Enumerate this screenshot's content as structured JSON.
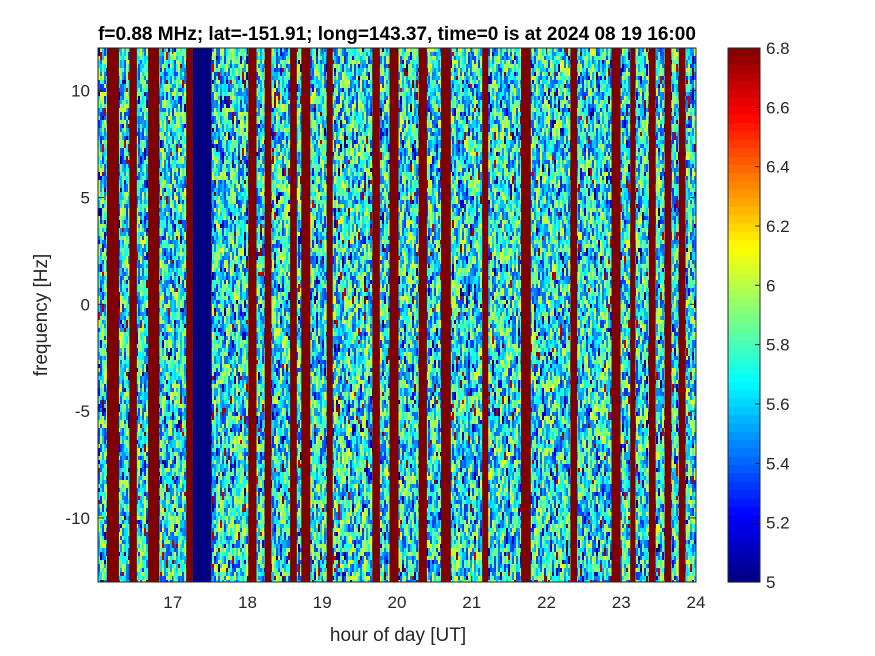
{
  "chart_data": {
    "type": "heatmap",
    "title": "f=0.88 MHz;  lat=-151.91; long=143.37, time=0 is at 2024 08 19 16:00",
    "xlabel": "hour of day [UT]",
    "ylabel": "frequency [Hz]",
    "xlim": [
      16.0,
      24.0
    ],
    "ylim": [
      -13.0,
      12.0
    ],
    "x_ticks": [
      17,
      18,
      19,
      20,
      21,
      22,
      23,
      24
    ],
    "x_tick_labels": [
      "17",
      "18",
      "19",
      "20",
      "21",
      "22",
      "23",
      "24"
    ],
    "y_ticks": [
      -10,
      -5,
      0,
      5,
      10
    ],
    "y_tick_labels": [
      "-10",
      "-5",
      "0",
      "5",
      "10"
    ],
    "colorbar": {
      "colormap": "jet",
      "clim": [
        5.0,
        6.8
      ],
      "ticks": [
        5,
        5.2,
        5.4,
        5.6,
        5.8,
        6,
        6.2,
        6.4,
        6.6,
        6.8
      ],
      "tick_labels": [
        "5",
        "5.2",
        "5.4",
        "5.6",
        "5.8",
        "6",
        "6.2",
        "6.4",
        "6.6",
        "6.8"
      ]
    },
    "background_value_range": [
      5.3,
      6.1
    ],
    "saturated_high_bands_hours": [
      [
        16.12,
        16.28
      ],
      [
        16.42,
        16.52
      ],
      [
        16.67,
        16.82
      ],
      [
        17.18,
        17.27
      ],
      [
        18.01,
        18.12
      ],
      [
        18.23,
        18.32
      ],
      [
        18.57,
        18.66
      ],
      [
        18.72,
        18.84
      ],
      [
        19.06,
        19.14
      ],
      [
        19.67,
        19.77
      ],
      [
        19.9,
        20.02
      ],
      [
        20.29,
        20.4
      ],
      [
        20.59,
        20.72
      ],
      [
        21.14,
        21.22
      ],
      [
        21.66,
        21.79
      ],
      [
        22.32,
        22.41
      ],
      [
        22.87,
        22.99
      ],
      [
        23.12,
        23.19
      ],
      [
        23.37,
        23.46
      ],
      [
        23.58,
        23.67
      ],
      [
        23.77,
        23.86
      ]
    ],
    "saturated_low_bands_hours": [
      [
        17.27,
        17.52
      ]
    ]
  }
}
